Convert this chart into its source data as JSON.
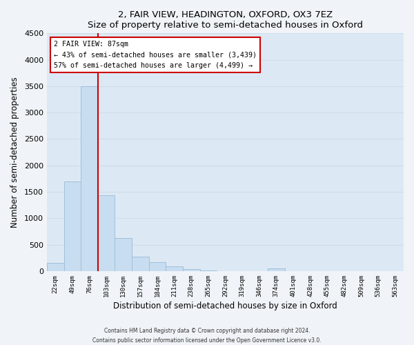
{
  "title": "2, FAIR VIEW, HEADINGTON, OXFORD, OX3 7EZ",
  "subtitle": "Size of property relative to semi-detached houses in Oxford",
  "xlabel": "Distribution of semi-detached houses by size in Oxford",
  "ylabel": "Number of semi-detached properties",
  "bar_labels": [
    "22sqm",
    "49sqm",
    "76sqm",
    "103sqm",
    "130sqm",
    "157sqm",
    "184sqm",
    "211sqm",
    "238sqm",
    "265sqm",
    "292sqm",
    "319sqm",
    "346sqm",
    "374sqm",
    "401sqm",
    "428sqm",
    "455sqm",
    "482sqm",
    "509sqm",
    "536sqm",
    "563sqm"
  ],
  "bar_values": [
    150,
    1700,
    3500,
    1440,
    620,
    270,
    165,
    90,
    40,
    15,
    5,
    2,
    1,
    45,
    0,
    0,
    0,
    0,
    0,
    0,
    0
  ],
  "bar_color": "#c8ddf0",
  "bar_edge_color": "#a0bfd8",
  "grid_color": "#d0dde8",
  "bg_color": "#dce9f5",
  "fig_color": "#f0f4f8",
  "marker_label": "2 FAIR VIEW: 87sqm",
  "annotation_line1": "← 43% of semi-detached houses are smaller (3,439)",
  "annotation_line2": "57% of semi-detached houses are larger (4,499) →",
  "vline_color": "#cc0000",
  "box_edge_color": "#cc0000",
  "vline_x": 2.5,
  "ylim": [
    0,
    4500
  ],
  "yticks": [
    0,
    500,
    1000,
    1500,
    2000,
    2500,
    3000,
    3500,
    4000,
    4500
  ],
  "footer_line1": "Contains HM Land Registry data © Crown copyright and database right 2024.",
  "footer_line2": "Contains public sector information licensed under the Open Government Licence v3.0."
}
